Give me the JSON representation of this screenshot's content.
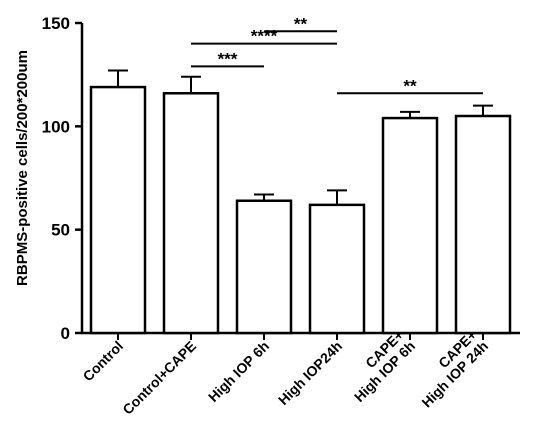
{
  "chart_data": {
    "type": "bar",
    "categories": [
      [
        "Control"
      ],
      [
        "Control+CAPE"
      ],
      [
        "High IOP 6h"
      ],
      [
        "High IOP24h"
      ],
      [
        "CAPE+",
        "High IOP 6h"
      ],
      [
        "CAPE+",
        "High IOP 24h"
      ]
    ],
    "values": [
      119,
      116,
      64,
      62,
      104,
      105
    ],
    "error_upper": [
      8,
      8,
      3,
      7,
      3,
      5
    ],
    "ylabel": "RBPMS-positive cells/200*200um",
    "xlabel": "",
    "ylim": [
      0,
      150
    ],
    "yticks": [
      0,
      50,
      100,
      150
    ],
    "grid": false,
    "colors": {
      "bar_fill": "#ffffff",
      "stroke": "#000000"
    },
    "significance": [
      {
        "from": 2,
        "to": 3,
        "label": "**",
        "y": 146
      },
      {
        "from": 1,
        "to": 3,
        "label": "****",
        "y": 140
      },
      {
        "from": 1,
        "to": 2,
        "label": "***",
        "y": 129
      },
      {
        "from": 3,
        "to": 5,
        "label": "**",
        "y": 116
      }
    ]
  }
}
